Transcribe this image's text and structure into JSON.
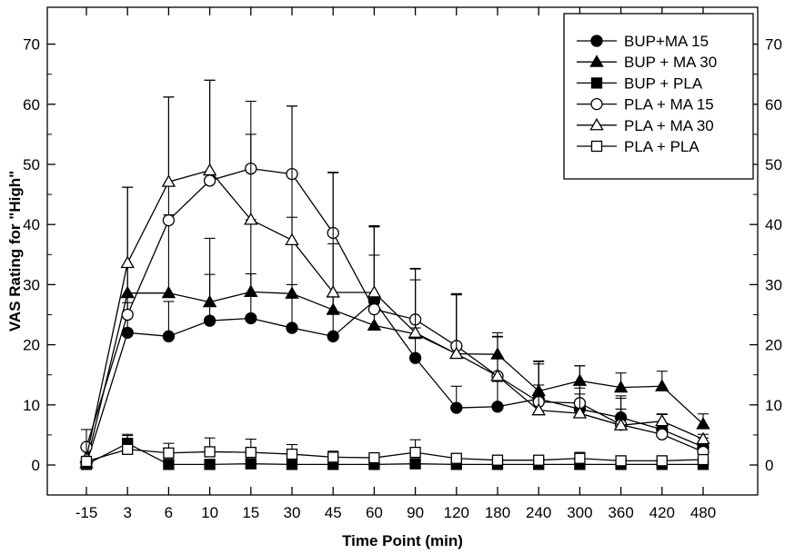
{
  "chart_data": {
    "type": "line",
    "xlabel": "Time Point (min)",
    "ylabel": "VAS Rating for \"High\"",
    "categories": [
      "-15",
      "3",
      "6",
      "10",
      "15",
      "30",
      "45",
      "60",
      "90",
      "120",
      "180",
      "240",
      "300",
      "360",
      "420",
      "480"
    ],
    "ylim": [
      -5,
      75
    ],
    "yticks": [
      0,
      10,
      20,
      30,
      40,
      50,
      60,
      70
    ],
    "y_axis_right_mirror": true,
    "grid": false,
    "legend_position": "top-right",
    "error_bars": "one-sided (upward for upper curves, downward for some lower ones)",
    "series": [
      {
        "name": "BUP+MA 15",
        "marker": "filled-circle",
        "values": [
          0.2,
          22,
          21.4,
          24,
          24.4,
          22.8,
          21.4,
          27.3,
          17.8,
          9.5,
          9.7,
          11,
          9.3,
          7.9,
          5.9,
          3
        ],
        "errors": [
          0,
          5,
          5.8,
          7.7,
          7.4,
          7.2,
          6.6,
          12.5,
          5,
          3.6,
          4.2,
          5.8,
          3.5,
          3.6,
          2.5,
          1.5
        ]
      },
      {
        "name": "BUP + MA 30",
        "marker": "filled-triangle",
        "values": [
          0.3,
          28.6,
          28.6,
          27.1,
          28.8,
          28.5,
          25.8,
          23.2,
          21.8,
          18.5,
          18.4,
          12.3,
          14,
          12.9,
          13.1,
          6.8
        ],
        "errors": [
          0,
          17.6,
          13,
          10.6,
          12,
          12.7,
          11,
          11.7,
          9,
          10,
          3.6,
          5,
          2.5,
          2.4,
          2.5,
          1.7
        ]
      },
      {
        "name": "BUP + PLA",
        "marker": "filled-square",
        "values": [
          0.1,
          3.6,
          0.1,
          0.1,
          0.2,
          0.1,
          0.1,
          0.1,
          0.2,
          0.1,
          0.1,
          0.1,
          0.1,
          0.1,
          0.1,
          0.1
        ],
        "errors": [
          0,
          1.5,
          0,
          0,
          0,
          0,
          0,
          0,
          0,
          0,
          0,
          0,
          0,
          0,
          0,
          0
        ]
      },
      {
        "name": "PLA + MA 15",
        "marker": "open-circle",
        "values": [
          3,
          25,
          40.7,
          47.3,
          49.3,
          48.4,
          38.6,
          25.9,
          24.2,
          19.8,
          14.8,
          10.5,
          10.3,
          6.7,
          5.1,
          2.2
        ],
        "errors": [
          0,
          8,
          20.5,
          16.7,
          11.2,
          11.3,
          10,
          13.8,
          8.5,
          8.6,
          6.5,
          6.7,
          6.2,
          4.4,
          3.3,
          1
        ]
      },
      {
        "name": "PLA + MA 30",
        "marker": "open-triangle",
        "values": [
          1.2,
          33.6,
          47.1,
          49,
          40.8,
          37.4,
          28.7,
          28.7,
          22,
          18.5,
          14.8,
          9.1,
          8.6,
          6.6,
          7.3,
          4.3
        ],
        "errors": [
          0,
          12.6,
          14.1,
          15,
          14.2,
          22.3,
          20,
          10.9,
          10.6,
          9.8,
          6.6,
          4.2,
          3.2,
          2.7,
          1.2,
          0.8
        ]
      },
      {
        "name": "PLA + PLA",
        "marker": "open-square",
        "values": [
          0.6,
          2.6,
          2,
          2.2,
          2.1,
          1.8,
          1.3,
          1.2,
          2.1,
          1.1,
          0.8,
          0.8,
          1.1,
          0.7,
          0.7,
          0.9
        ],
        "errors": [
          5.3,
          2.3,
          1.6,
          2.3,
          2.2,
          1.6,
          1,
          0.6,
          2.1,
          0.6,
          0.3,
          0.4,
          1,
          0.4,
          0.2,
          0.4
        ]
      }
    ]
  }
}
